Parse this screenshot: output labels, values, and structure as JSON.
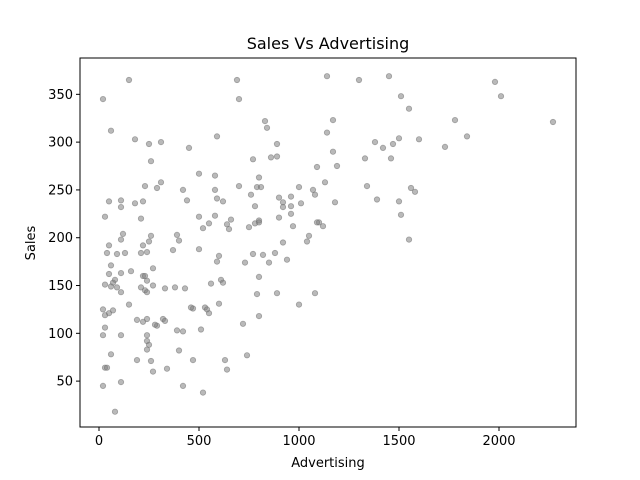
{
  "chart_data": {
    "type": "scatter",
    "title": "Sales Vs Advertising",
    "xlabel": "Advertising",
    "ylabel": "Sales",
    "xlim": [
      -95,
      2385
    ],
    "ylim": [
      2,
      388
    ],
    "xticks": [
      0,
      500,
      1000,
      1500,
      2000
    ],
    "yticks": [
      50,
      100,
      150,
      200,
      250,
      300,
      350
    ],
    "grid": false,
    "legend": "none",
    "marker_color": "#808080",
    "marker_edge_color": "#6e6e6e",
    "marker_opacity": 0.55,
    "series": [
      {
        "points": [
          [
            1140,
            369
          ],
          [
            1300,
            365
          ],
          [
            1450,
            369
          ],
          [
            150,
            365
          ],
          [
            690,
            365
          ],
          [
            1980,
            363
          ],
          [
            2010,
            348
          ],
          [
            1510,
            348
          ],
          [
            20,
            345
          ],
          [
            700,
            345
          ],
          [
            1550,
            335
          ],
          [
            830,
            322
          ],
          [
            1170,
            323
          ],
          [
            1780,
            323
          ],
          [
            2270,
            321
          ],
          [
            840,
            315
          ],
          [
            60,
            312
          ],
          [
            1140,
            310
          ],
          [
            590,
            306
          ],
          [
            1840,
            306
          ],
          [
            180,
            303
          ],
          [
            1500,
            304
          ],
          [
            1600,
            303
          ],
          [
            1380,
            300
          ],
          [
            310,
            300
          ],
          [
            250,
            298
          ],
          [
            890,
            298
          ],
          [
            1470,
            298
          ],
          [
            450,
            294
          ],
          [
            1420,
            294
          ],
          [
            1730,
            295
          ],
          [
            1170,
            290
          ],
          [
            860,
            284
          ],
          [
            890,
            285
          ],
          [
            770,
            282
          ],
          [
            1460,
            283
          ],
          [
            1330,
            283
          ],
          [
            260,
            280
          ],
          [
            1190,
            275
          ],
          [
            1090,
            274
          ],
          [
            800,
            263
          ],
          [
            580,
            265
          ],
          [
            500,
            267
          ],
          [
            310,
            258
          ],
          [
            1130,
            258
          ],
          [
            1340,
            254
          ],
          [
            230,
            254
          ],
          [
            700,
            254
          ],
          [
            790,
            253
          ],
          [
            810,
            253
          ],
          [
            1000,
            253
          ],
          [
            1560,
            252
          ],
          [
            1070,
            250
          ],
          [
            420,
            250
          ],
          [
            580,
            250
          ],
          [
            290,
            252
          ],
          [
            1580,
            248
          ],
          [
            1080,
            245
          ],
          [
            760,
            245
          ],
          [
            900,
            242
          ],
          [
            960,
            243
          ],
          [
            920,
            237
          ],
          [
            1010,
            236
          ],
          [
            1180,
            237
          ],
          [
            1500,
            238
          ],
          [
            1390,
            240
          ],
          [
            590,
            241
          ],
          [
            620,
            238
          ],
          [
            440,
            239
          ],
          [
            220,
            238
          ],
          [
            180,
            236
          ],
          [
            110,
            239
          ],
          [
            110,
            232
          ],
          [
            780,
            233
          ],
          [
            920,
            232
          ],
          [
            960,
            233
          ],
          [
            30,
            222
          ],
          [
            500,
            222
          ],
          [
            580,
            223
          ],
          [
            800,
            218
          ],
          [
            900,
            221
          ],
          [
            1100,
            216
          ],
          [
            1510,
            224
          ],
          [
            210,
            220
          ],
          [
            660,
            219
          ],
          [
            640,
            214
          ],
          [
            550,
            215
          ],
          [
            780,
            215
          ],
          [
            800,
            216
          ],
          [
            960,
            225
          ],
          [
            970,
            212
          ],
          [
            50,
            238
          ],
          [
            1120,
            212
          ],
          [
            520,
            210
          ],
          [
            650,
            209
          ],
          [
            750,
            211
          ],
          [
            120,
            204
          ],
          [
            260,
            202
          ],
          [
            390,
            203
          ],
          [
            1050,
            202
          ],
          [
            1550,
            198
          ],
          [
            110,
            198
          ],
          [
            400,
            197
          ],
          [
            250,
            196
          ],
          [
            50,
            192
          ],
          [
            220,
            192
          ],
          [
            920,
            195
          ],
          [
            500,
            188
          ],
          [
            1040,
            196
          ],
          [
            210,
            184
          ],
          [
            240,
            185
          ],
          [
            370,
            187
          ],
          [
            770,
            183
          ],
          [
            880,
            184
          ],
          [
            40,
            184
          ],
          [
            90,
            183
          ],
          [
            130,
            184
          ],
          [
            820,
            182
          ],
          [
            940,
            177
          ],
          [
            600,
            181
          ],
          [
            850,
            174
          ],
          [
            590,
            175
          ],
          [
            730,
            174
          ],
          [
            60,
            171
          ],
          [
            270,
            168
          ],
          [
            160,
            165
          ],
          [
            110,
            163
          ],
          [
            50,
            162
          ],
          [
            80,
            156
          ],
          [
            240,
            155
          ],
          [
            610,
            156
          ],
          [
            620,
            153
          ],
          [
            560,
            152
          ],
          [
            70,
            153
          ],
          [
            220,
            160
          ],
          [
            230,
            160
          ],
          [
            30,
            151
          ],
          [
            60,
            149
          ],
          [
            90,
            148
          ],
          [
            270,
            150
          ],
          [
            330,
            147
          ],
          [
            380,
            148
          ],
          [
            430,
            147
          ],
          [
            800,
            159
          ],
          [
            210,
            148
          ],
          [
            230,
            145
          ],
          [
            240,
            143
          ],
          [
            110,
            143
          ],
          [
            1080,
            142
          ],
          [
            890,
            142
          ],
          [
            790,
            141
          ],
          [
            150,
            130
          ],
          [
            20,
            125
          ],
          [
            50,
            121
          ],
          [
            70,
            124
          ],
          [
            30,
            119
          ],
          [
            190,
            114
          ],
          [
            220,
            112
          ],
          [
            240,
            115
          ],
          [
            290,
            108
          ],
          [
            280,
            109
          ],
          [
            530,
            127
          ],
          [
            550,
            121
          ],
          [
            540,
            125
          ],
          [
            600,
            131
          ],
          [
            1000,
            130
          ],
          [
            800,
            118
          ],
          [
            720,
            110
          ],
          [
            30,
            106
          ],
          [
            20,
            98
          ],
          [
            110,
            98
          ],
          [
            510,
            104
          ],
          [
            470,
            126
          ],
          [
            420,
            102
          ],
          [
            320,
            115
          ],
          [
            240,
            98
          ],
          [
            240,
            92
          ],
          [
            250,
            88
          ],
          [
            240,
            83
          ],
          [
            20,
            45
          ],
          [
            30,
            64
          ],
          [
            40,
            64
          ],
          [
            60,
            78
          ],
          [
            190,
            72
          ],
          [
            340,
            63
          ],
          [
            400,
            82
          ],
          [
            420,
            45
          ],
          [
            520,
            38
          ],
          [
            270,
            60
          ],
          [
            260,
            71
          ],
          [
            470,
            72
          ],
          [
            640,
            62
          ],
          [
            740,
            77
          ],
          [
            630,
            72
          ],
          [
            110,
            49
          ],
          [
            80,
            18
          ],
          [
            390,
            103
          ],
          [
            1090,
            216
          ],
          [
            330,
            113
          ],
          [
            460,
            127
          ]
        ]
      }
    ]
  }
}
